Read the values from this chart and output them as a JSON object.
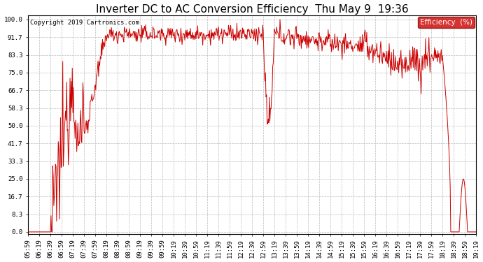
{
  "title": "Inverter DC to AC Conversion Efficiency  Thu May 9  19:36",
  "copyright": "Copyright 2019 Cartronics.com",
  "legend_label": "Efficiency  (%)",
  "legend_bg": "#cc0000",
  "legend_text_color": "#ffffff",
  "line_color": "#cc0000",
  "background_color": "#ffffff",
  "plot_bg_color": "#ffffff",
  "grid_color": "#bbbbbb",
  "yticks": [
    0.0,
    8.3,
    16.7,
    25.0,
    33.3,
    41.7,
    50.0,
    58.3,
    66.7,
    75.0,
    83.3,
    91.7,
    100.0
  ],
  "ylim": [
    -1,
    102
  ],
  "title_fontsize": 11,
  "tick_fontsize": 6.5,
  "xlabel_rotation": 90,
  "figwidth": 6.9,
  "figheight": 3.75,
  "dpi": 100
}
